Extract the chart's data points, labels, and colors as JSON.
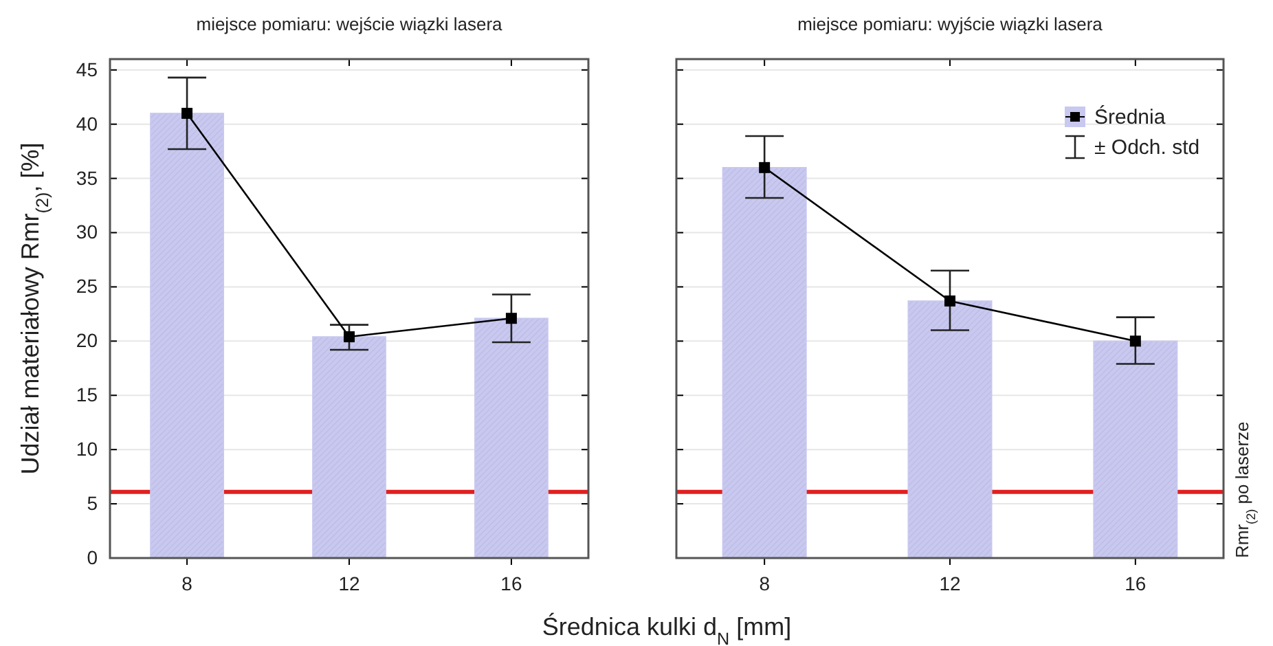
{
  "chart_data": [
    {
      "type": "bar",
      "title": "miejsce pomiaru: wejście wiązki lasera",
      "xlabel": "Średnica kulki d$_{N}$ [mm]",
      "ylabel": "Udział materiałowy Rmr$_{(2)}$, [%]",
      "categories": [
        "8",
        "12",
        "16"
      ],
      "ylim": [
        0,
        46
      ],
      "yticks": [
        0,
        5,
        10,
        15,
        20,
        25,
        30,
        35,
        40,
        45
      ],
      "grid": "y",
      "series": [
        {
          "color": "#c8c8f0",
          "values": [
            41.0,
            20.4,
            22.1
          ]
        },
        {
          "type": "line",
          "color": "#000000",
          "marker": "square",
          "values": [
            41.0,
            20.4,
            22.1
          ],
          "errors": [
            [
              37.7,
              44.3
            ],
            [
              19.2,
              21.5
            ],
            [
              19.9,
              24.3
            ]
          ]
        }
      ],
      "ref_lines": [
        {
          "axis": "y",
          "value": 6.1,
          "color": "#e02020"
        }
      ]
    },
    {
      "type": "bar",
      "title": "miejsce pomiaru: wyjście wiązki lasera",
      "tick_labels": "x",
      "legend": "top right",
      "annotations": [
        "± Odch. std"
      ],
      "categories": [
        "8",
        "12",
        "16"
      ],
      "ylim": [
        0,
        46
      ],
      "yticks": [
        0,
        5,
        10,
        15,
        20,
        25,
        30,
        35,
        40,
        45
      ],
      "grid": "y",
      "series": [
        {
          "color": "#c8c8f0",
          "values": [
            36.0,
            23.7,
            20.0
          ]
        },
        {
          "type": "line",
          "name": "Średnia",
          "color": "#000000",
          "marker": "square",
          "values": [
            36.0,
            23.7,
            20.0
          ],
          "errors": [
            [
              33.2,
              38.9
            ],
            [
              21.0,
              26.5
            ],
            [
              17.9,
              22.2
            ]
          ]
        }
      ],
      "ref_lines": [
        {
          "axis": "y",
          "value": 6.1,
          "color": "#e02020",
          "label": "Rmr$_{(2)}$ po laserze"
        }
      ]
    }
  ]
}
